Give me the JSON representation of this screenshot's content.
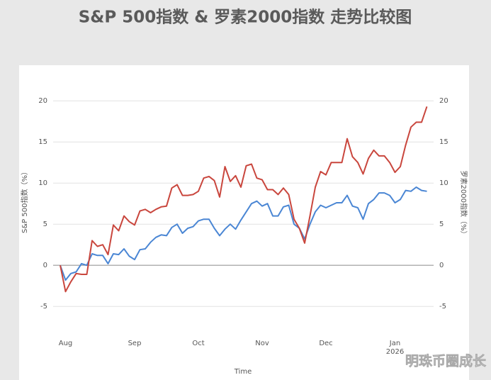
{
  "chart_data": {
    "type": "line",
    "title": "S&P 500指数 & 罗素2000指数 走势比较图",
    "x_label": "Time",
    "y_label": "S&P 500指数（%）",
    "y2_label": "罗素2000指数（%）",
    "watermark": "明珠币圈成长",
    "categories": [
      null,
      "Aug",
      null,
      null,
      null,
      null,
      null,
      null,
      null,
      null,
      null,
      null,
      null,
      null,
      "Sep",
      null,
      null,
      null,
      null,
      null,
      null,
      null,
      null,
      null,
      null,
      null,
      "Oct",
      null,
      null,
      null,
      null,
      null,
      null,
      null,
      null,
      null,
      null,
      null,
      "Nov",
      null,
      null,
      null,
      null,
      null,
      null,
      null,
      null,
      null,
      null,
      null,
      "Dec",
      null,
      null,
      null,
      null,
      null,
      null,
      null,
      null,
      null,
      null,
      null,
      null,
      "Jan\n2026",
      null,
      null,
      null,
      null,
      null,
      null
    ],
    "ylim": [
      -8,
      22
    ],
    "yticks": [
      -5,
      0,
      5,
      10,
      15,
      20
    ],
    "y2lim": [
      -8,
      22
    ],
    "y2ticks": [
      -5,
      0,
      5,
      10,
      15,
      20
    ],
    "grid": true,
    "series": [
      {
        "name": "S&P 500",
        "color": "#4a86d4",
        "axis": "y",
        "values": [
          0,
          -1.8,
          -1,
          -0.8,
          0.2,
          0,
          1.4,
          1.2,
          1.2,
          0.2,
          1.4,
          1.3,
          2,
          1.1,
          0.7,
          1.9,
          2,
          2.8,
          3.4,
          3.7,
          3.6,
          4.6,
          5,
          3.9,
          4.5,
          4.7,
          5.4,
          5.6,
          5.6,
          4.5,
          3.6,
          4.4,
          5,
          4.4,
          5.5,
          6.5,
          7.5,
          7.8,
          7.2,
          7.5,
          6,
          6,
          7.1,
          7.3,
          5,
          4.5,
          3.2,
          5,
          6.5,
          7.3,
          7,
          7.3,
          7.6,
          7.6,
          8.5,
          7.2,
          7,
          5.6,
          7.5,
          8,
          8.8,
          8.8,
          8.5,
          7.6,
          8,
          9.1,
          9,
          9.5,
          9.1,
          9
        ]
      },
      {
        "name": "Russell 2000",
        "color": "#c9463d",
        "axis": "y2",
        "values": [
          0,
          -3.2,
          -2,
          -1,
          -1.1,
          -1.1,
          3,
          2.3,
          2.5,
          1.3,
          4.9,
          4.2,
          6,
          5.3,
          4.9,
          6.6,
          6.8,
          6.4,
          6.8,
          7.1,
          7.2,
          9.4,
          9.8,
          8.5,
          8.5,
          8.6,
          9,
          10.6,
          10.8,
          10.3,
          8.3,
          12,
          10.2,
          10.9,
          9.5,
          12.1,
          12.3,
          10.6,
          10.4,
          9.2,
          9.2,
          8.6,
          9.4,
          8.6,
          5.6,
          4.5,
          2.7,
          6,
          9.5,
          11.4,
          11,
          12.5,
          12.5,
          12.5,
          15.4,
          13.2,
          12.5,
          11.1,
          13,
          14,
          13.3,
          13.3,
          12.5,
          11.3,
          12,
          14.6,
          16.8,
          17.4,
          17.4,
          19.3
        ]
      }
    ]
  }
}
